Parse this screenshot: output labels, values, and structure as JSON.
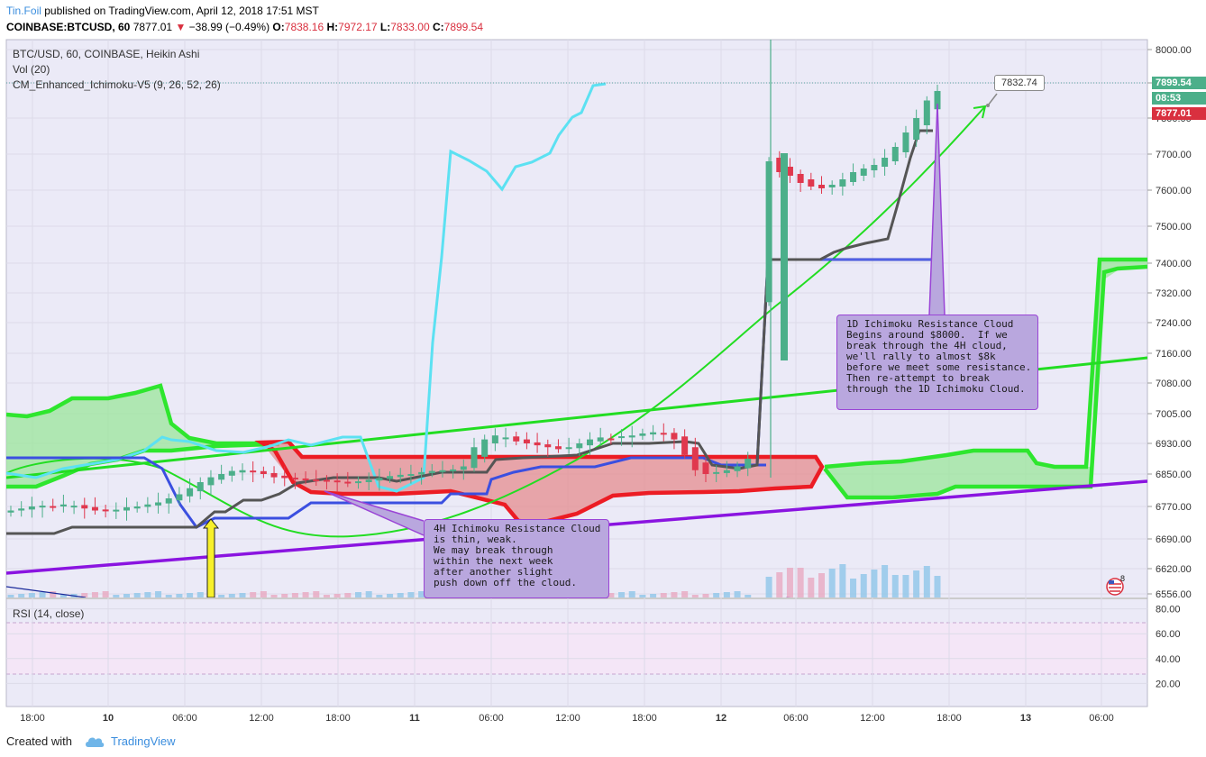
{
  "header": {
    "author": "Tin.Foil",
    "published_text": "published on TradingView.com, April 12, 2018 17:51 MST",
    "symbol": "COINBASE:BTCUSD, 60",
    "last": "7877.01",
    "change": "−38.99 (−0.49%)",
    "o_label": "O:",
    "o_value": "7838.16",
    "h_label": "H:",
    "h_value": "7972.17",
    "l_label": "L:",
    "l_value": "7833.00",
    "c_label": "C:",
    "c_value": "7899.54"
  },
  "legend": {
    "series": "BTC/USD, 60, COINBASE, Heikin Ashi",
    "volume": "Vol (20)",
    "indicator": "CM_Enhanced_Ichimoku-V5 (9, 26, 52, 26)",
    "rsi": "RSI (14, close)"
  },
  "price_tags": {
    "current": "7899.54",
    "countdown": "08:53",
    "secondary": "7877.01",
    "callout": "7832.74"
  },
  "annotations": {
    "note_1d": "1D Ichimoku Resistance Cloud\nBegins around $8000.  If we\nbreak through the 4H cloud,\nwe'll rally to almost $8k\nbefore we meet some resistance.\nThen re-attempt to break\nthrough the 1D Ichimoku Cloud.",
    "note_4h": "4H Ichimoku Resistance Cloud\nis thin, weak.\nWe may break through\nwithin the next week\nafter another slight\npush down off the cloud."
  },
  "footer": {
    "created_with": "Created with",
    "brand": "TradingView"
  },
  "colors": {
    "bull": "#4caf8a",
    "bear": "#e0384e",
    "green_cloud": "#2ee62e",
    "red_cloud": "#ec1c24",
    "tenkan": "#555555",
    "kijun": "#3b4fe0",
    "chikou": "#5ce1f2",
    "trendline": "#8a14e0",
    "arc": "#22dd22"
  },
  "chart_data": {
    "type": "candlestick",
    "price_axis": {
      "ticks": [
        "8000.00",
        "7900.00",
        "7800.00",
        "7700.00",
        "7600.00",
        "7500.00",
        "7400.00",
        "7320.00",
        "7240.00",
        "7160.00",
        "7080.00",
        "7005.00",
        "6930.00",
        "6850.00",
        "6770.00",
        "6690.00",
        "6620.00",
        "6556.00"
      ]
    },
    "time_axis": {
      "ticks": [
        "18:00",
        "10",
        "06:00",
        "12:00",
        "18:00",
        "11",
        "06:00",
        "12:00",
        "18:00",
        "12",
        "06:00",
        "12:00",
        "18:00",
        "13",
        "06:00"
      ]
    },
    "rsi_axis": {
      "ticks": [
        "80.00",
        "60.00",
        "40.00",
        "20.00"
      ],
      "band": [
        30,
        70
      ]
    },
    "heikin_ashi_close": [
      6760,
      6765,
      6770,
      6772,
      6768,
      6775,
      6772,
      6765,
      6760,
      6758,
      6762,
      6768,
      6770,
      6775,
      6780,
      6790,
      6800,
      6815,
      6830,
      6842,
      6850,
      6858,
      6860,
      6855,
      6850,
      6842,
      6840,
      6838,
      6835,
      6836,
      6832,
      6830,
      6828,
      6832,
      6836,
      6840,
      6845,
      6848,
      6850,
      6855,
      6858,
      6860,
      6862,
      6870,
      6920,
      6940,
      6950,
      6945,
      6935,
      6930,
      6925,
      6920,
      6915,
      6920,
      6930,
      6940,
      6945,
      6942,
      6948,
      6950,
      6955,
      6958,
      6955,
      6940,
      6900,
      6860,
      6850,
      6855,
      6860,
      6870,
      6890,
      7700,
      7680,
      7650,
      7640,
      7620,
      7610,
      7605,
      7615,
      7630,
      7650,
      7660,
      7670,
      7690,
      7720,
      7760,
      7800,
      7850,
      7877
    ]
  }
}
